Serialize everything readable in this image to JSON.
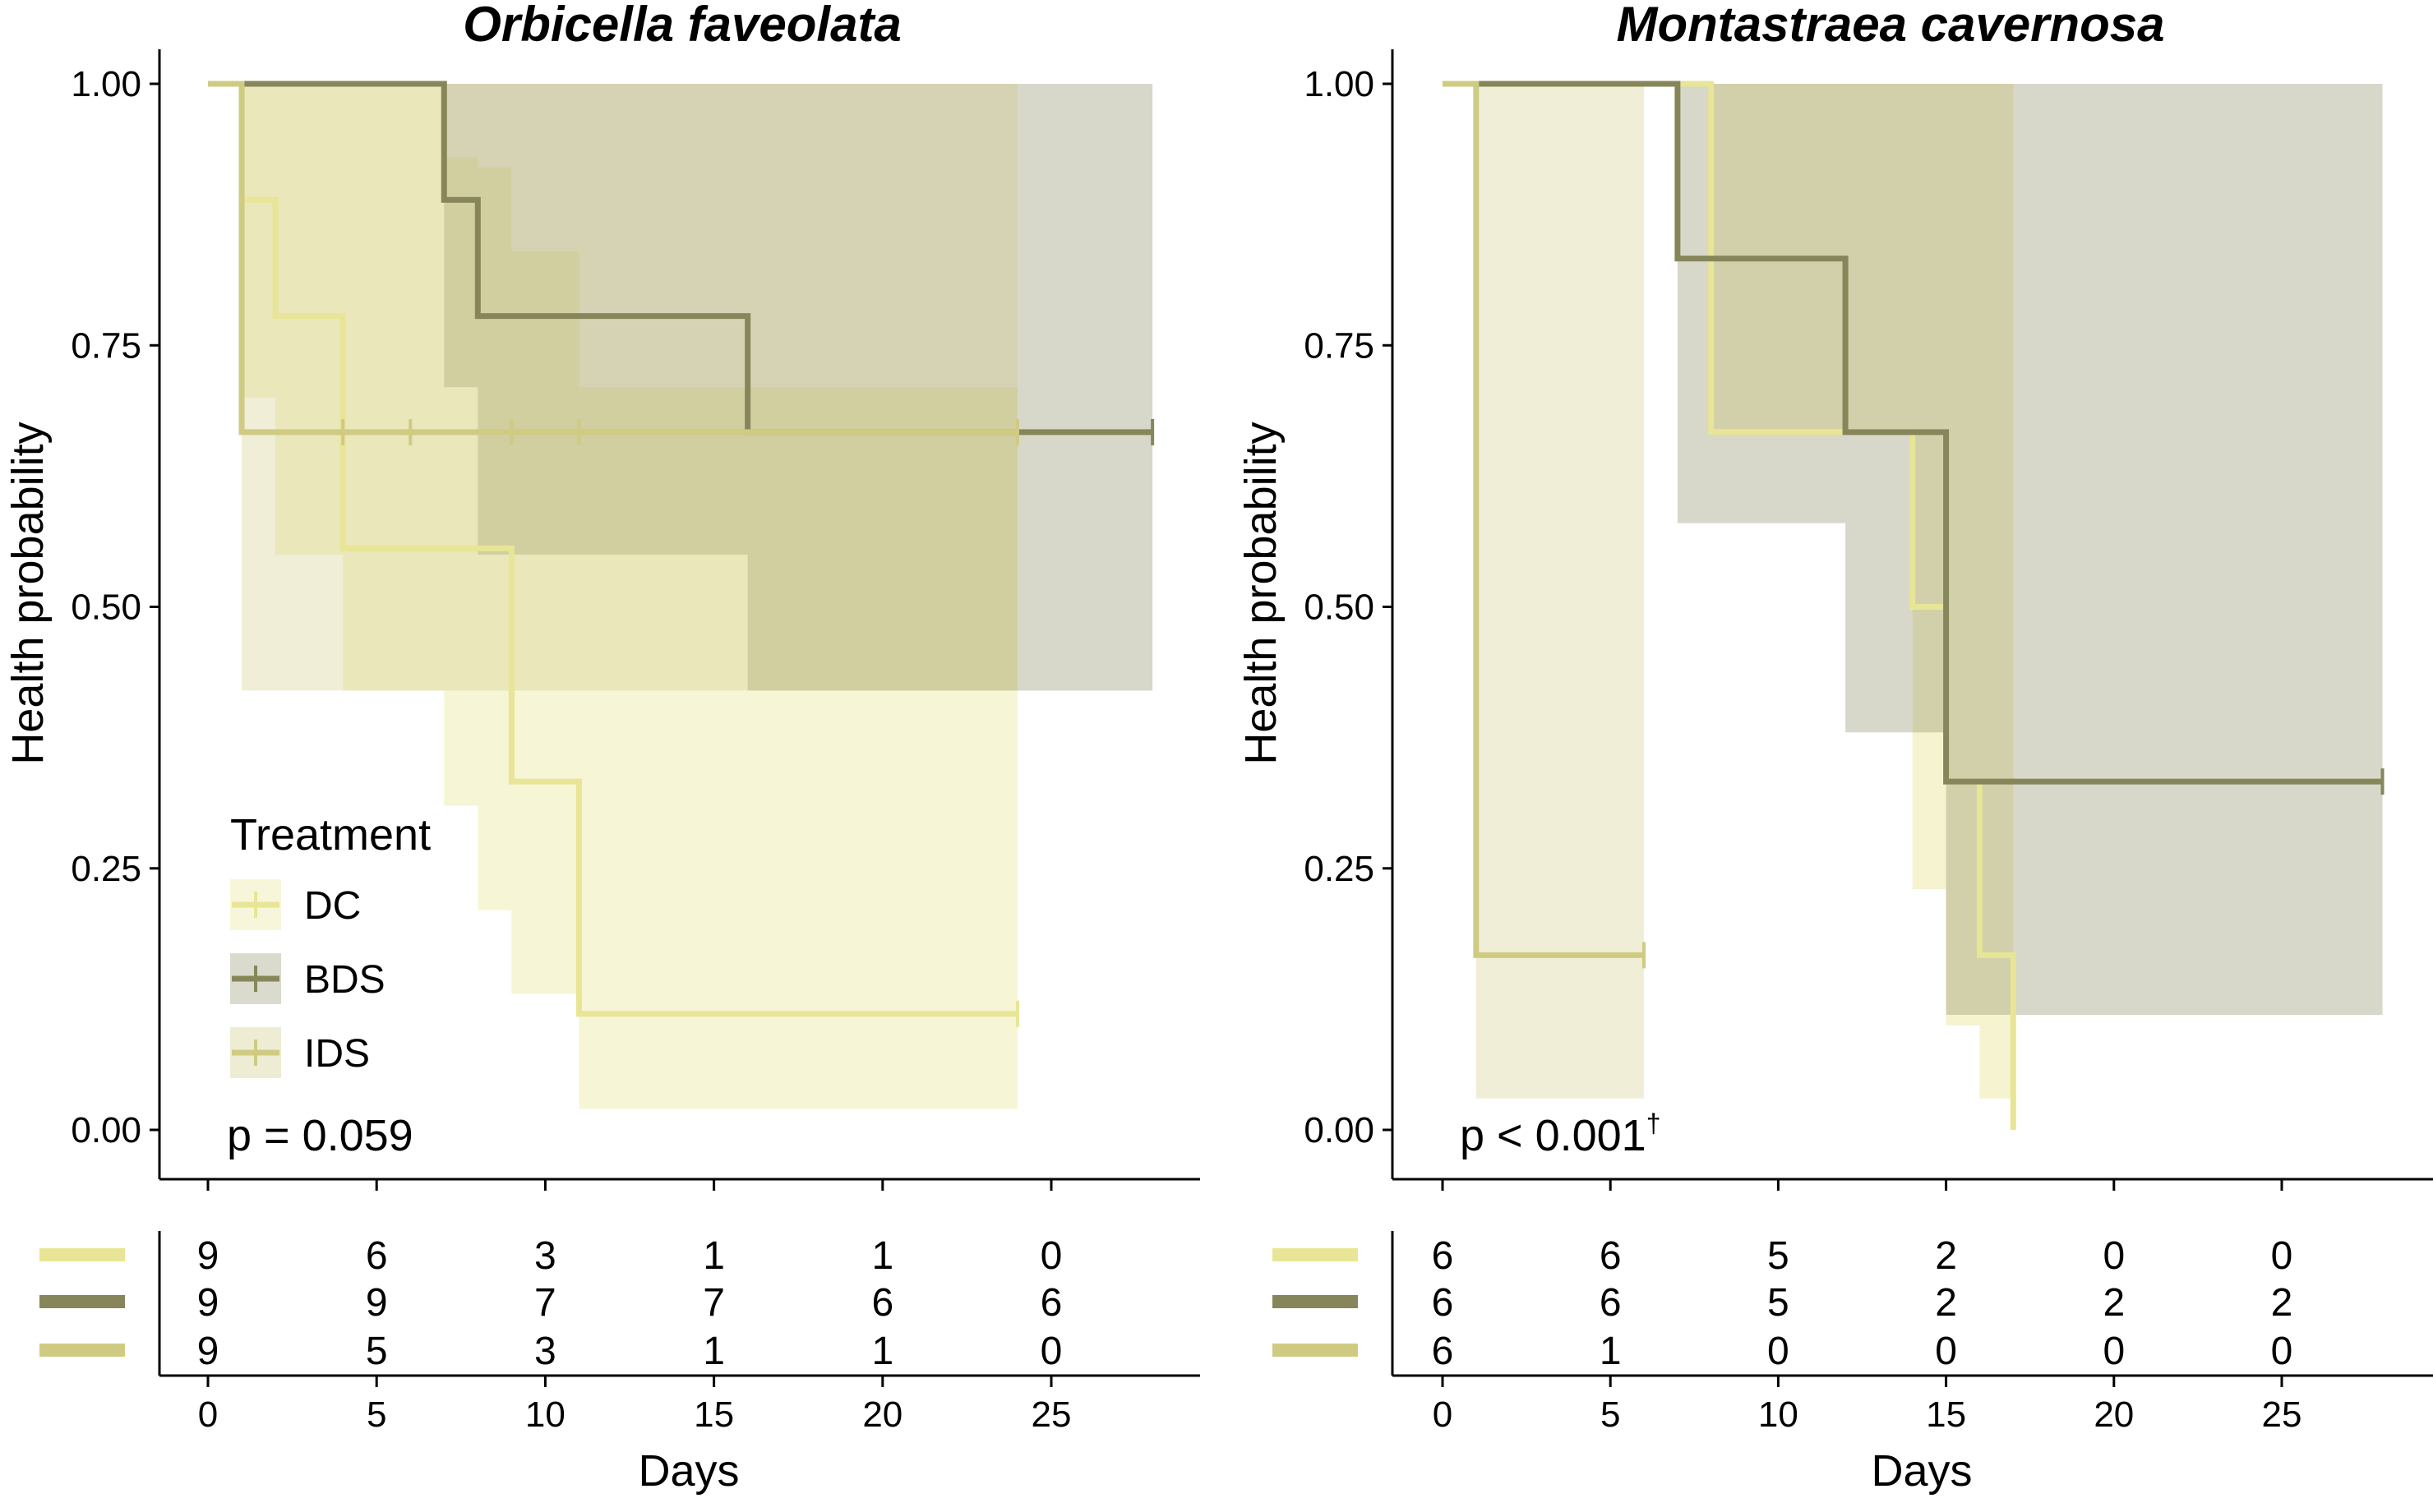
{
  "colors": {
    "DC": "#e8e596",
    "BDS": "#86865a",
    "IDS": "#cfcb83"
  },
  "chart_data": [
    {
      "type": "line",
      "subtype": "kaplan-meier",
      "title": "Orbicella faveolata",
      "ylabel": "Health probability",
      "xlabel": "Days",
      "xlim": [
        0,
        28
      ],
      "ylim": [
        0,
        1
      ],
      "xticks": [
        "0",
        "5",
        "10",
        "15",
        "20",
        "25"
      ],
      "yticks": [
        "0.00",
        "0.25",
        "0.50",
        "0.75",
        "1.00"
      ],
      "pvalue": "p = 0.059",
      "legend": {
        "title": "Treatment",
        "entries": [
          "DC",
          "BDS",
          "IDS"
        ],
        "position": "bottom-left"
      },
      "series": [
        {
          "name": "DC",
          "color": "#e8e596",
          "ci_opacity": 0.4,
          "steps": [
            [
              0,
              1
            ],
            [
              1,
              0.889
            ],
            [
              2,
              0.778
            ],
            [
              4,
              0.556
            ],
            [
              8,
              0.556
            ],
            [
              9,
              0.444
            ],
            [
              9,
              0.333
            ],
            [
              11,
              0.111
            ],
            [
              24,
              0.111
            ]
          ],
          "ci": [
            [
              0,
              1,
              1
            ],
            [
              1,
              0.7,
              1
            ],
            [
              2,
              0.55,
              1
            ],
            [
              4,
              0.42,
              1
            ],
            [
              7,
              0.31,
              0.93
            ],
            [
              8,
              0.21,
              0.92
            ],
            [
              9,
              0.13,
              0.84
            ],
            [
              11,
              0.02,
              0.71
            ],
            [
              24,
              0.02,
              0.71
            ]
          ],
          "censor": [
            24
          ]
        },
        {
          "name": "BDS",
          "color": "#86865a",
          "ci_opacity": 0.32,
          "steps": [
            [
              0,
              1
            ],
            [
              7,
              0.889
            ],
            [
              8,
              0.778
            ],
            [
              16,
              0.667
            ],
            [
              28,
              0.667
            ]
          ],
          "ci": [
            [
              0,
              1,
              1
            ],
            [
              7,
              0.71,
              1
            ],
            [
              8,
              0.55,
              1
            ],
            [
              16,
              0.42,
              1
            ],
            [
              28,
              0.42,
              1
            ]
          ],
          "censor": [
            28
          ]
        },
        {
          "name": "IDS",
          "color": "#cfcb83",
          "ci_opacity": 0.32,
          "steps": [
            [
              0,
              1
            ],
            [
              1,
              0.667
            ],
            [
              24,
              0.667
            ]
          ],
          "ci": [
            [
              0,
              1,
              1
            ],
            [
              1,
              0.42,
              1
            ],
            [
              24,
              0.42,
              1
            ]
          ],
          "censor": [
            4,
            6,
            9,
            11,
            24
          ]
        }
      ],
      "risk_table": {
        "times": [
          0,
          5,
          10,
          15,
          20,
          25
        ],
        "rows": [
          {
            "name": "DC",
            "values": [
              "9",
              "6",
              "3",
              "1",
              "1",
              "0"
            ]
          },
          {
            "name": "BDS",
            "values": [
              "9",
              "9",
              "7",
              "7",
              "6",
              "6"
            ]
          },
          {
            "name": "IDS",
            "values": [
              "9",
              "5",
              "3",
              "1",
              "1",
              "0"
            ]
          }
        ]
      }
    },
    {
      "type": "line",
      "subtype": "kaplan-meier",
      "title": "Montastraea cavernosa",
      "ylabel": "Health probability",
      "xlabel": "Days",
      "xlim": [
        0,
        28
      ],
      "ylim": [
        0,
        1
      ],
      "xticks": [
        "0",
        "5",
        "10",
        "15",
        "20",
        "25"
      ],
      "yticks": [
        "0.00",
        "0.25",
        "0.50",
        "0.75",
        "1.00"
      ],
      "pvalue": "p < 0.001",
      "pvalue_note": "†",
      "series": [
        {
          "name": "DC",
          "color": "#e8e596",
          "ci_opacity": 0.45,
          "steps": [
            [
              0,
              1
            ],
            [
              8,
              0.667
            ],
            [
              14,
              0.5
            ],
            [
              15,
              0.333
            ],
            [
              16,
              0.167
            ],
            [
              17,
              0
            ],
            [
              17,
              0
            ]
          ],
          "ci": [
            [
              8,
              0.67,
              1
            ],
            [
              14,
              0.23,
              1
            ],
            [
              15,
              0.1,
              1
            ],
            [
              16,
              0.03,
              1
            ],
            [
              17,
              0,
              0
            ]
          ],
          "censor": []
        },
        {
          "name": "BDS",
          "color": "#86865a",
          "ci_opacity": 0.32,
          "steps": [
            [
              0,
              1
            ],
            [
              7,
              0.833
            ],
            [
              12,
              0.667
            ],
            [
              15,
              0.333
            ],
            [
              28,
              0.333
            ]
          ],
          "ci": [
            [
              0,
              1,
              1
            ],
            [
              7,
              0.58,
              1
            ],
            [
              12,
              0.38,
              1
            ],
            [
              15,
              0.11,
              1
            ],
            [
              28,
              0.11,
              1
            ]
          ],
          "censor": [
            28
          ]
        },
        {
          "name": "IDS",
          "color": "#cfcb83",
          "ci_opacity": 0.32,
          "steps": [
            [
              0,
              1
            ],
            [
              1,
              0.167
            ],
            [
              6,
              0.167
            ]
          ],
          "ci": [
            [
              0,
              1,
              1
            ],
            [
              1,
              0.03,
              1
            ],
            [
              6,
              0.03,
              1
            ]
          ],
          "censor": [
            6
          ]
        }
      ],
      "risk_table": {
        "times": [
          0,
          5,
          10,
          15,
          20,
          25
        ],
        "rows": [
          {
            "name": "DC",
            "values": [
              "6",
              "6",
              "5",
              "2",
              "0",
              "0"
            ]
          },
          {
            "name": "BDS",
            "values": [
              "6",
              "6",
              "5",
              "2",
              "2",
              "2"
            ]
          },
          {
            "name": "IDS",
            "values": [
              "6",
              "1",
              "0",
              "0",
              "0",
              "0"
            ]
          }
        ]
      }
    }
  ]
}
